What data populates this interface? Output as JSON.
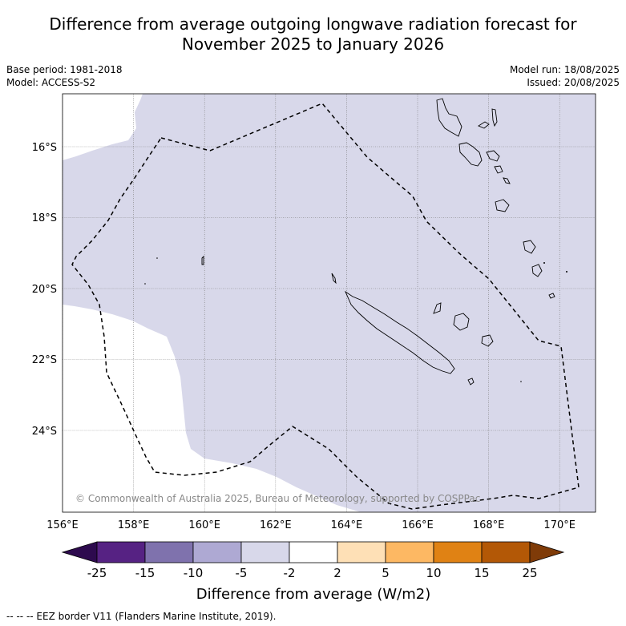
{
  "title_line1": "Difference from average outgoing longwave radiation forecast for",
  "title_line2": "November 2025 to January 2026",
  "base_period": "Base period: 1981-2018",
  "model": "Model: ACCESS-S2",
  "model_run": "Model run: 18/08/2025",
  "issued": "Issued: 20/08/2025",
  "copyright": "© Commonwealth of Australia 2025, Bureau of Meteorology, supported by COSPPac",
  "lon_ticks": [
    "156°E",
    "158°E",
    "160°E",
    "162°E",
    "164°E",
    "166°E",
    "168°E",
    "170°E"
  ],
  "lat_ticks": [
    "16°S",
    "18°S",
    "20°S",
    "22°S",
    "24°S"
  ],
  "colorbar": {
    "labels": [
      "-25",
      "-15",
      "-10",
      "-5",
      "-2",
      "2",
      "5",
      "10",
      "15",
      "25"
    ],
    "colors": [
      "#2d0a4e",
      "#562283",
      "#7f72ad",
      "#aea9d3",
      "#d8d8ea",
      "#ffffff",
      "#fee0b6",
      "#fdb863",
      "#e08214",
      "#b35806",
      "#7f3b08"
    ],
    "title": "Difference from average (W/m2)"
  },
  "footnote": "--  --  -- EEZ border V11 (Flanders Marine Institute, 2019).",
  "field_color": "#d8d8ea",
  "eez_border_color": "#000000"
}
